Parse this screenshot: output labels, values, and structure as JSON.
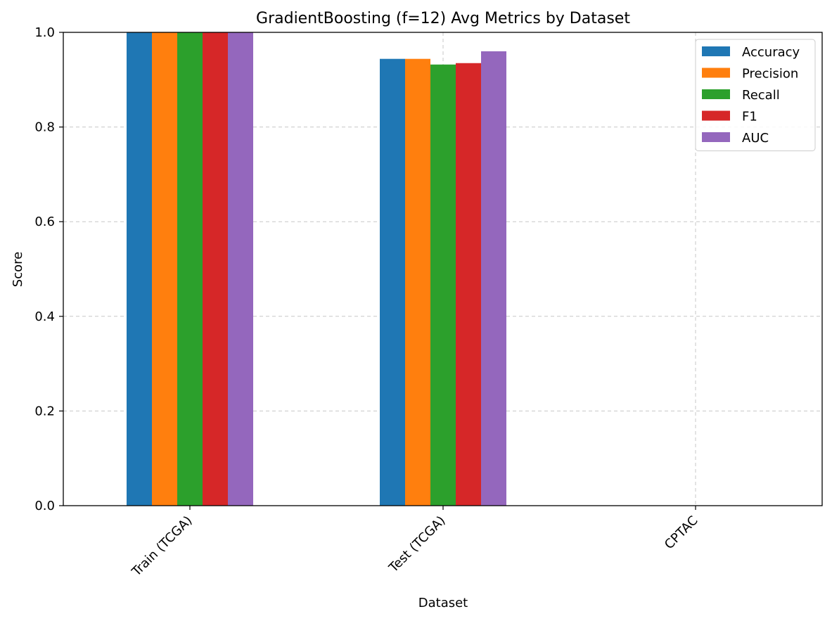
{
  "chart_data": {
    "type": "bar",
    "title": "GradientBoosting (f=12) Avg Metrics by Dataset",
    "xlabel": "Dataset",
    "ylabel": "Score",
    "ylim": [
      0,
      1.0
    ],
    "yticks": [
      "0.0",
      "0.2",
      "0.4",
      "0.6",
      "0.8",
      "1.0"
    ],
    "categories": [
      "Train (TCGA)",
      "Test (TCGA)",
      "CPTAC"
    ],
    "series": [
      {
        "name": "Accuracy",
        "color": "#1f77b4",
        "values": [
          1.0,
          0.944,
          null
        ]
      },
      {
        "name": "Precision",
        "color": "#ff7f0e",
        "values": [
          1.0,
          0.944,
          null
        ]
      },
      {
        "name": "Recall",
        "color": "#2ca02c",
        "values": [
          1.0,
          0.932,
          null
        ]
      },
      {
        "name": "F1",
        "color": "#d62728",
        "values": [
          1.0,
          0.935,
          null
        ]
      },
      {
        "name": "AUC",
        "color": "#9467bd",
        "values": [
          1.0,
          0.96,
          null
        ]
      }
    ],
    "grid": true,
    "legend_position": "top-right"
  }
}
